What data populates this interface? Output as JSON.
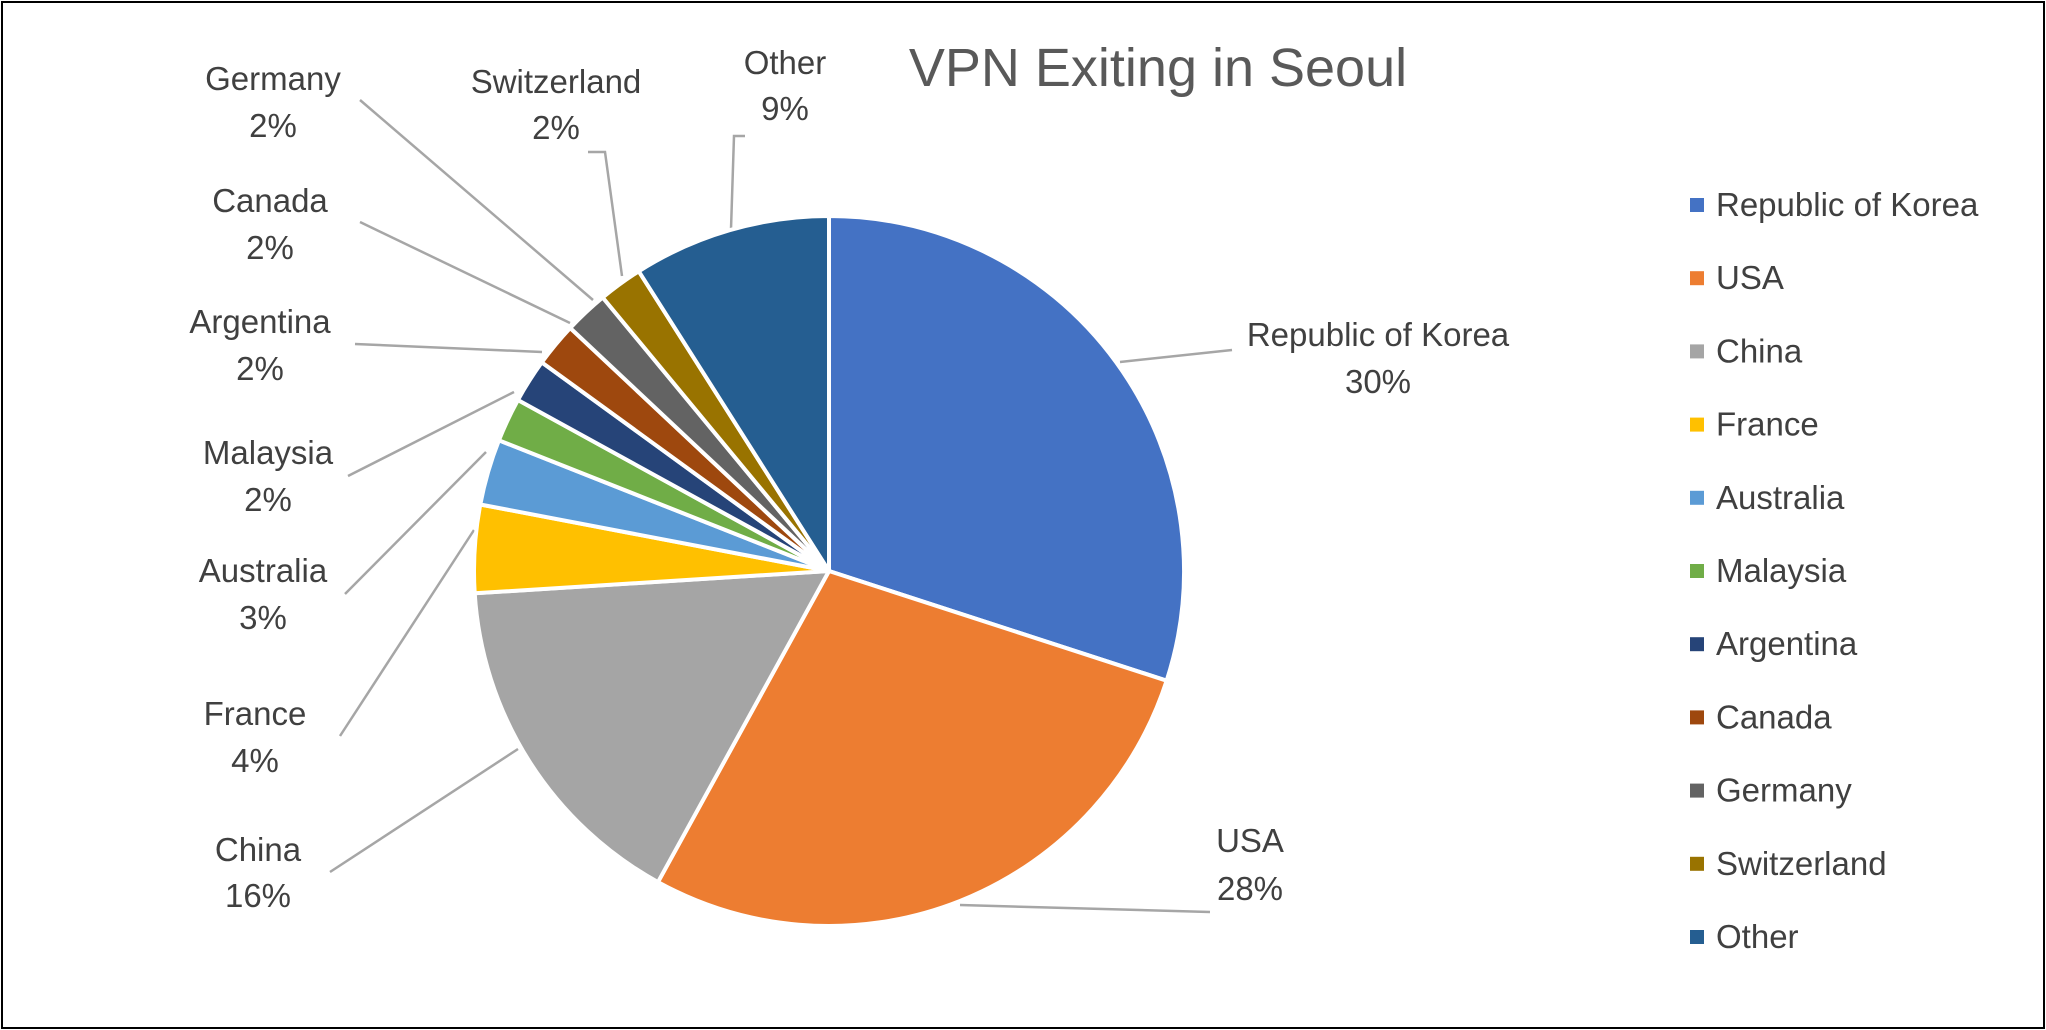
{
  "chart_data": {
    "type": "pie",
    "title": "VPN Exiting in Seoul",
    "legend_position": "right",
    "slices": [
      {
        "name": "Republic of  Korea",
        "value": 30,
        "label": "30%",
        "color": "#4472C4"
      },
      {
        "name": "USA",
        "value": 28,
        "label": "28%",
        "color": "#ED7D31"
      },
      {
        "name": "China",
        "value": 16,
        "label": "16%",
        "color": "#A5A5A5"
      },
      {
        "name": "France",
        "value": 4,
        "label": "4%",
        "color": "#FFC000"
      },
      {
        "name": "Australia",
        "value": 3,
        "label": "3%",
        "color": "#5B9BD5"
      },
      {
        "name": "Malaysia",
        "value": 2,
        "label": "2%",
        "color": "#70AD47"
      },
      {
        "name": "Argentina",
        "value": 2,
        "label": "2%",
        "color": "#264478"
      },
      {
        "name": "Canada",
        "value": 2,
        "label": "2%",
        "color": "#9E480E"
      },
      {
        "name": "Germany",
        "value": 2,
        "label": "2%",
        "color": "#636363"
      },
      {
        "name": "Switzerland",
        "value": 2,
        "label": "2%",
        "color": "#997300"
      },
      {
        "name": "Other",
        "value": 9,
        "label": "9%",
        "color": "#255E91"
      }
    ]
  }
}
